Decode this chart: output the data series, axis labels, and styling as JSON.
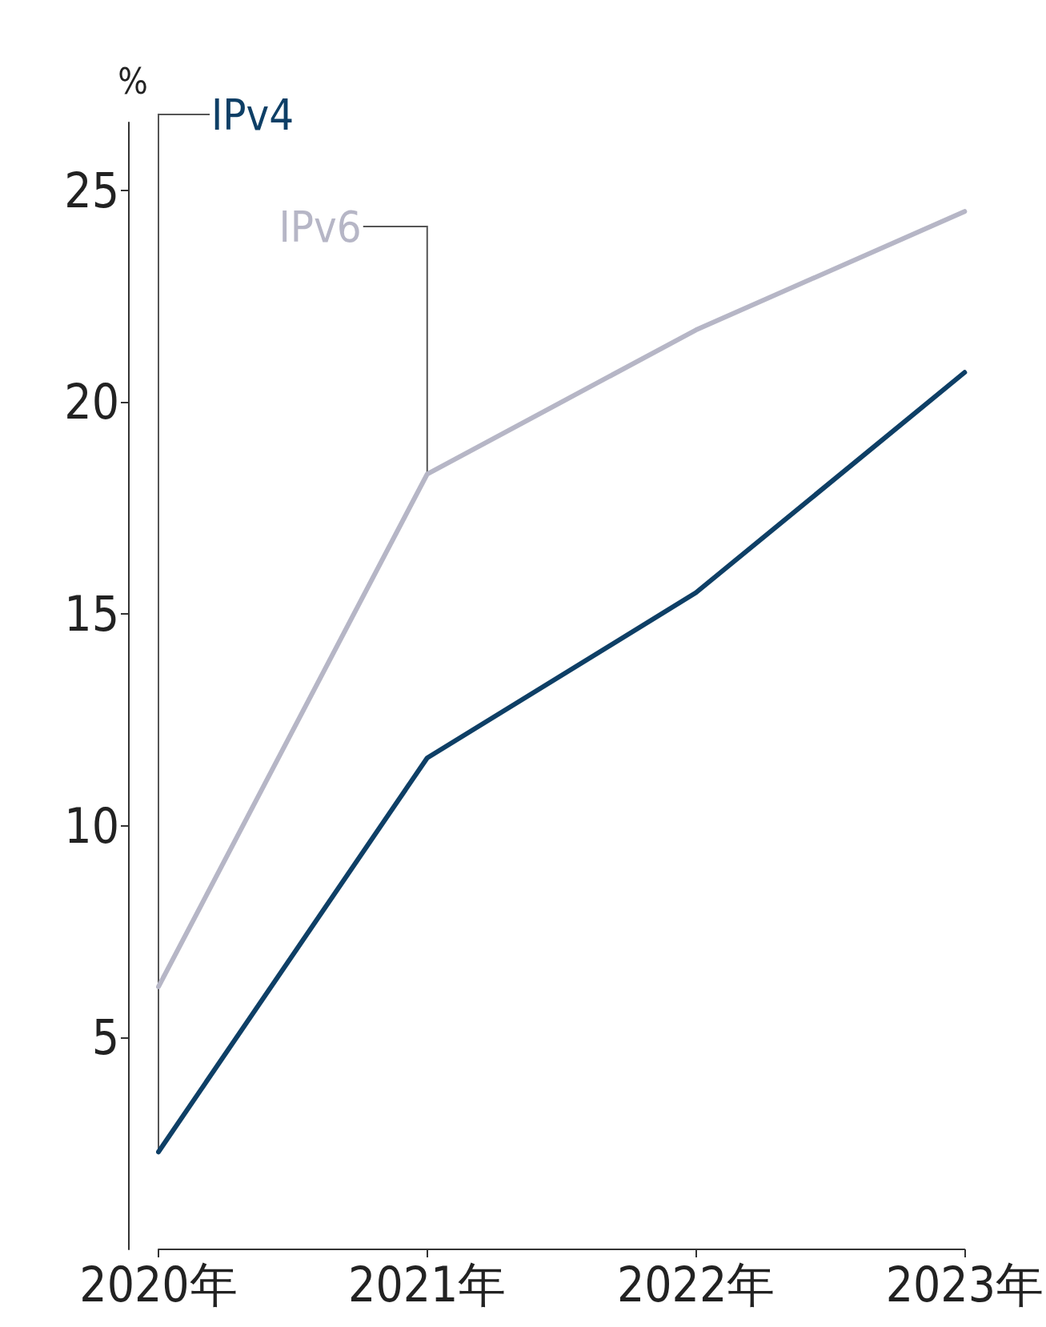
{
  "chart_data": {
    "type": "line",
    "ylabel": "%",
    "categories": [
      "2020年",
      "2021年",
      "2022年",
      "2023年"
    ],
    "series": [
      {
        "name": "IPv4",
        "color": "#0e3f66",
        "values": [
          2.3,
          11.6,
          15.5,
          20.7
        ]
      },
      {
        "name": "IPv6",
        "color": "#b6b6c6",
        "values": [
          6.2,
          18.3,
          21.7,
          24.5
        ]
      }
    ],
    "ylim": [
      0,
      26.6
    ],
    "yticks": [
      5,
      10,
      15,
      20,
      25
    ],
    "grid": false,
    "legend": false,
    "marker": "none",
    "line_style": "solid"
  }
}
